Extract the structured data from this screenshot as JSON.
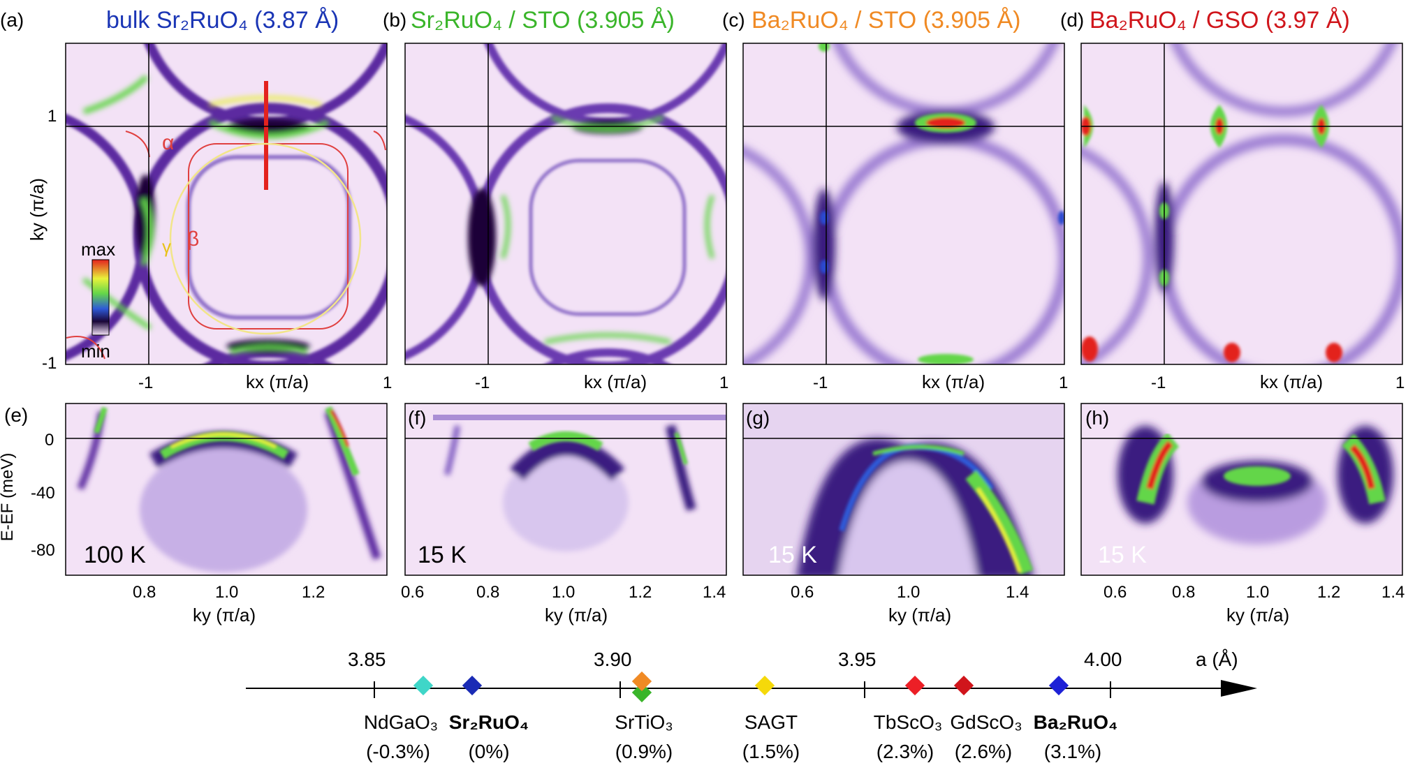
{
  "colors": {
    "bg_light": "#f3e2f6",
    "band_purple": "#5b2aa0",
    "band_dark": "#1a0638",
    "hot_green": "#63d64a",
    "hot_yellow": "#e8f23a",
    "hot_red": "#e3221e",
    "title_blue": "#1a35b5",
    "title_green": "#3ab52a",
    "title_orange": "#f08a24",
    "title_red": "#d0151b",
    "contour_red": "#e04040",
    "contour_yellow": "#f2e58a"
  },
  "colorbar": {
    "max_label": "max",
    "min_label": "min"
  },
  "fermi_panels": [
    {
      "letter": "(a)",
      "title": "bulk Sr₂RuO₄ (3.87 Å)",
      "color": "title_blue",
      "labels": {
        "alpha": "α",
        "beta": "β",
        "gamma": "γ"
      }
    },
    {
      "letter": "(b)",
      "title": "Sr₂RuO₄ / STO (3.905 Å)",
      "color": "title_green"
    },
    {
      "letter": "(c)",
      "title": "Ba₂RuO₄ / STO (3.905 Å)",
      "color": "title_orange"
    },
    {
      "letter": "(d)",
      "title": "Ba₂RuO₄ / GSO (3.97 Å)",
      "color": "title_red"
    }
  ],
  "fermi_axes": {
    "ylabel": "ky (π/a)",
    "xlabel": "kx (π/a)",
    "yticks": [
      "1",
      "-1"
    ],
    "xticks": [
      "-1",
      "1"
    ]
  },
  "dispersion_panels": [
    {
      "letter": "(e)",
      "temperature": "100 K",
      "xticks": [
        "0.8",
        "1.0",
        "1.2"
      ]
    },
    {
      "letter": "(f)",
      "temperature": "15 K",
      "xticks": [
        "0.6",
        "0.8",
        "1.0",
        "1.2",
        "1.4"
      ]
    },
    {
      "letter": "(g)",
      "temperature": "15 K",
      "xticks": [
        "0.6",
        "1.0",
        "1.4"
      ]
    },
    {
      "letter": "(h)",
      "temperature": "15 K",
      "xticks": [
        "0.6",
        "0.8",
        "1.0",
        "1.2",
        "1.4"
      ]
    }
  ],
  "dispersion_axes": {
    "ylabel": "E-EF (meV)",
    "xlabel": "ky (π/a)",
    "yticks": [
      "0",
      "-40",
      "-80"
    ]
  },
  "lattice_axis": {
    "unit_label": "a (Å)",
    "ticks": [
      "3.85",
      "3.90",
      "3.95",
      "4.00"
    ],
    "substrates": [
      {
        "name": "NdGaO₃",
        "strain": "(-0.3%)",
        "color": "#3fd6c8",
        "bold": false
      },
      {
        "name": "Sr₂RuO₄",
        "strain": "(0%)",
        "color": "#1a2bb5",
        "bold": true
      },
      {
        "name": "SrTiO₃",
        "strain": "(0.9%)",
        "color": "#f08a24",
        "bold": false
      },
      {
        "name": "SAGT",
        "strain": "(1.5%)",
        "color": "#f5d90a",
        "bold": false
      },
      {
        "name": "TbScO₃",
        "strain": "(2.3%)",
        "color": "#ec1f26",
        "bold": false
      },
      {
        "name": "GdScO₃",
        "strain": "(2.6%)",
        "color": "#d0151b",
        "bold": false
      },
      {
        "name": "Ba₂RuO₄",
        "strain": "(3.1%)",
        "color": "#1e21d6",
        "bold": true
      }
    ],
    "extra_marker_color": "#3ab52a"
  }
}
